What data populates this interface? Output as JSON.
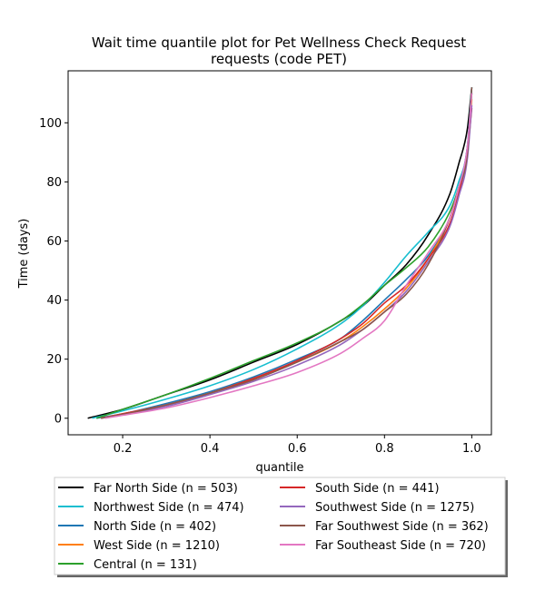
{
  "chart_data": {
    "type": "line",
    "title_lines": [
      "Wait time quantile plot for Pet Wellness Check Request",
      "requests (code PET)"
    ],
    "xlabel": "quantile",
    "ylabel": "Time (days)",
    "xlim": [
      0.075,
      1.045
    ],
    "ylim": [
      -5.6,
      117.6
    ],
    "xticks": [
      0.2,
      0.4,
      0.6,
      0.8,
      1.0
    ],
    "xtick_labels": [
      "0.2",
      "0.4",
      "0.6",
      "0.8",
      "1.0"
    ],
    "yticks": [
      0,
      20,
      40,
      60,
      80,
      100
    ],
    "ytick_labels": [
      "0",
      "20",
      "40",
      "60",
      "80",
      "100"
    ],
    "grid": false,
    "legend_position": "below",
    "legend_columns": 2,
    "series": [
      {
        "name": "Far North Side (n = 503)",
        "color": "#000000",
        "x": [
          0.12,
          0.2,
          0.3,
          0.4,
          0.5,
          0.6,
          0.7,
          0.75,
          0.8,
          0.85,
          0.9,
          0.95,
          0.97,
          0.99,
          1.0
        ],
        "y": [
          0,
          3,
          8,
          13,
          19,
          25,
          33,
          38,
          45,
          52,
          62,
          76,
          86,
          98,
          112
        ]
      },
      {
        "name": "Northwest Side (n = 474)",
        "color": "#17becf",
        "x": [
          0.13,
          0.2,
          0.3,
          0.4,
          0.5,
          0.6,
          0.7,
          0.75,
          0.8,
          0.85,
          0.9,
          0.95,
          0.97,
          0.99,
          1.0
        ],
        "y": [
          0,
          2.5,
          6.5,
          11,
          16.5,
          23.5,
          32,
          38,
          46,
          55,
          63,
          72,
          80,
          92,
          112
        ]
      },
      {
        "name": "North Side (n = 402)",
        "color": "#1f77b4",
        "x": [
          0.14,
          0.2,
          0.3,
          0.4,
          0.5,
          0.6,
          0.7,
          0.75,
          0.8,
          0.85,
          0.9,
          0.95,
          0.97,
          0.99,
          1.0
        ],
        "y": [
          0,
          1.5,
          5,
          9,
          14,
          20,
          27,
          33,
          40,
          47,
          55,
          68,
          78,
          92,
          110
        ]
      },
      {
        "name": "West Side (n = 1210)",
        "color": "#ff7f0e",
        "x": [
          0.15,
          0.2,
          0.3,
          0.4,
          0.5,
          0.6,
          0.7,
          0.75,
          0.8,
          0.85,
          0.9,
          0.95,
          0.97,
          0.99,
          1.0
        ],
        "y": [
          0,
          1.5,
          4.5,
          8.5,
          13.5,
          19,
          26,
          31,
          37,
          44,
          54,
          68,
          78,
          90,
          108
        ]
      },
      {
        "name": "Central (n = 131)",
        "color": "#2ca02c",
        "x": [
          0.14,
          0.2,
          0.3,
          0.4,
          0.5,
          0.6,
          0.7,
          0.75,
          0.8,
          0.85,
          0.9,
          0.95,
          0.97,
          0.99,
          1.0
        ],
        "y": [
          0,
          3,
          8,
          13.5,
          19.5,
          25.5,
          33,
          38.5,
          45,
          51,
          58,
          70,
          78,
          90,
          110
        ]
      },
      {
        "name": "South Side (n = 441)",
        "color": "#d62728",
        "x": [
          0.15,
          0.2,
          0.3,
          0.4,
          0.5,
          0.6,
          0.7,
          0.75,
          0.8,
          0.85,
          0.9,
          0.95,
          0.97,
          0.99,
          1.0
        ],
        "y": [
          0,
          1.5,
          4.5,
          8.5,
          13.5,
          19.5,
          27,
          32,
          39,
          45,
          54,
          66,
          76,
          90,
          105
        ]
      },
      {
        "name": "Southwest Side (n = 1275)",
        "color": "#9467bd",
        "x": [
          0.15,
          0.2,
          0.3,
          0.4,
          0.5,
          0.6,
          0.7,
          0.75,
          0.8,
          0.85,
          0.9,
          0.95,
          0.97,
          0.99,
          1.0
        ],
        "y": [
          0,
          1.2,
          4,
          8,
          12.5,
          18,
          25,
          30,
          36,
          43,
          53,
          65,
          75,
          88,
          106
        ]
      },
      {
        "name": "Far Southwest Side (n = 362)",
        "color": "#8c564b",
        "x": [
          0.15,
          0.2,
          0.3,
          0.4,
          0.5,
          0.6,
          0.7,
          0.75,
          0.8,
          0.85,
          0.9,
          0.95,
          0.97,
          0.99,
          1.0
        ],
        "y": [
          0,
          1.3,
          4.5,
          8.5,
          13,
          19,
          26,
          30,
          36,
          42,
          52,
          68,
          78,
          90,
          112
        ]
      },
      {
        "name": "Far Southeast Side (n = 720)",
        "color": "#e377c2",
        "x": [
          0.16,
          0.2,
          0.3,
          0.4,
          0.5,
          0.6,
          0.7,
          0.75,
          0.8,
          0.85,
          0.9,
          0.95,
          0.97,
          0.99,
          1.0
        ],
        "y": [
          0,
          1,
          3.5,
          7,
          11,
          15.5,
          22,
          27,
          33,
          45,
          56,
          68,
          78,
          92,
          110
        ]
      }
    ]
  }
}
